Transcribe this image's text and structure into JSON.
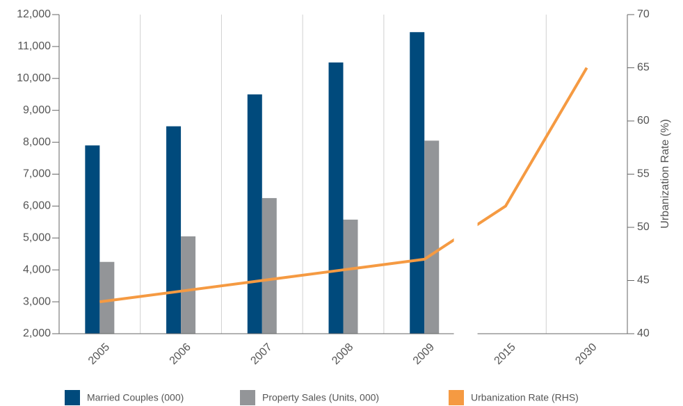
{
  "chart_data": {
    "type": "bar",
    "y2label": "Urbanization Rate (%)",
    "categories": [
      "2005",
      "2006",
      "2007",
      "2008",
      "2009",
      "2015",
      "2030"
    ],
    "series": [
      {
        "name": "Married Couples (000)",
        "color": "#004a7c",
        "values": [
          7900,
          8500,
          9500,
          10500,
          11450,
          null,
          null
        ]
      },
      {
        "name": "Property Sales (Units, 000)",
        "color": "#939598",
        "values": [
          4250,
          5050,
          6250,
          5575,
          8050,
          null,
          null
        ]
      },
      {
        "name": "Urbanization Rate (RHS)",
        "color": "#f59a42",
        "axis": "y2",
        "type": "line",
        "values": [
          43,
          44,
          45,
          46,
          47,
          52,
          65
        ]
      }
    ],
    "ylim": [
      2000,
      12000
    ],
    "yticks": [
      {
        "value": 2000,
        "label": "2,000"
      },
      {
        "value": 3000,
        "label": "3,000"
      },
      {
        "value": 4000,
        "label": "4,000"
      },
      {
        "value": 5000,
        "label": "5,000"
      },
      {
        "value": 6000,
        "label": "6,000"
      },
      {
        "value": 7000,
        "label": "7,000"
      },
      {
        "value": 8000,
        "label": "8,000"
      },
      {
        "value": 9000,
        "label": "9,000"
      },
      {
        "value": 10000,
        "label": "10,000"
      },
      {
        "value": 11000,
        "label": "11,000"
      },
      {
        "value": 12000,
        "label": "12,000"
      }
    ],
    "y2lim": [
      40,
      70
    ],
    "y2ticks": [
      40,
      45,
      50,
      55,
      60,
      65,
      70
    ],
    "grid": true
  }
}
